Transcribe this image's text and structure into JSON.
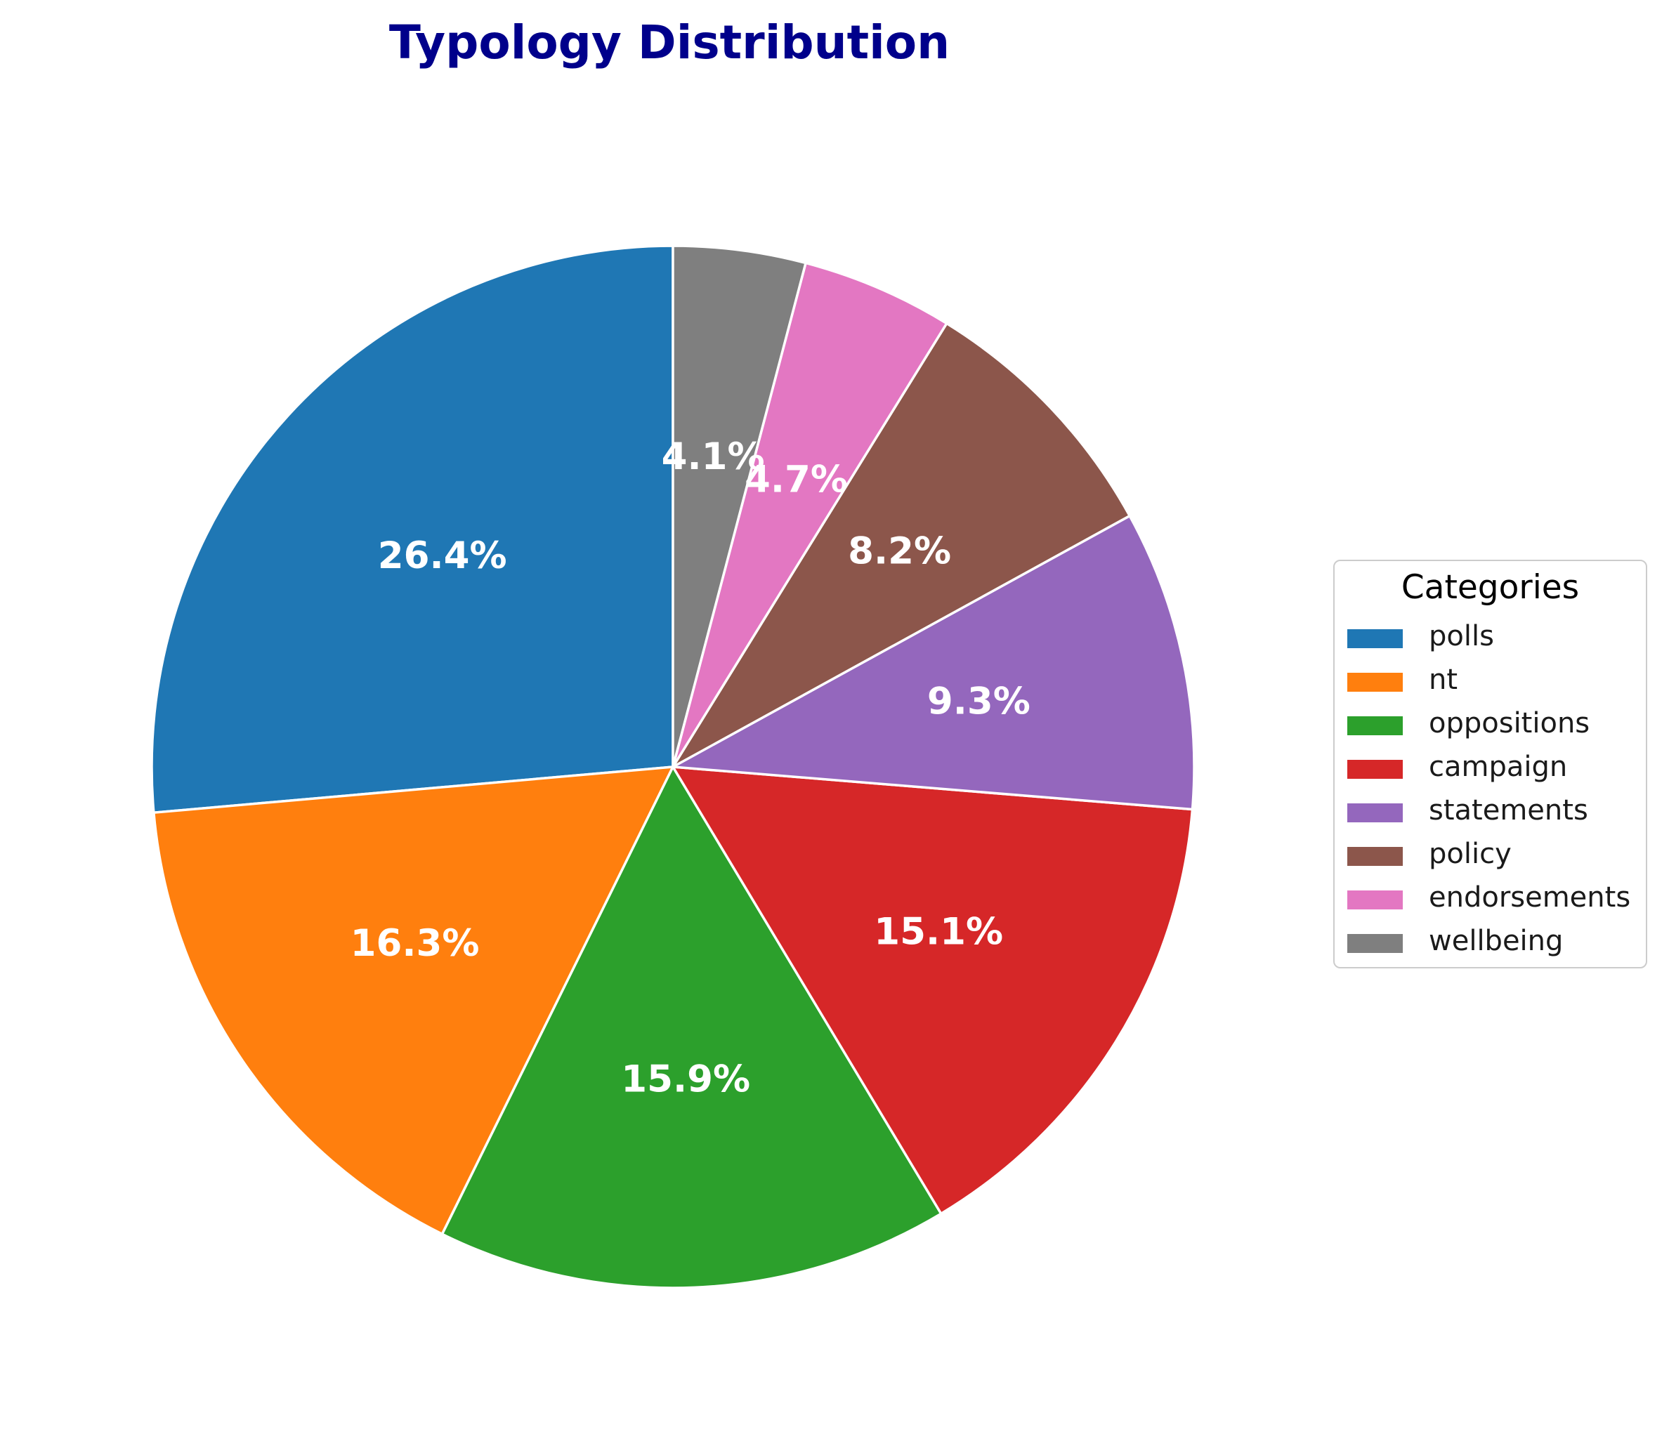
{
  "chart_data": {
    "type": "pie",
    "title": "Typology Distribution",
    "categories": [
      "polls",
      "nt",
      "oppositions",
      "campaign",
      "statements",
      "policy",
      "endorsements",
      "wellbeing"
    ],
    "values": [
      26.4,
      16.3,
      15.9,
      15.1,
      9.3,
      8.2,
      4.7,
      4.1
    ],
    "value_labels": [
      "26.4%",
      "16.3%",
      "15.9%",
      "15.1%",
      "9.3%",
      "8.2%",
      "4.7%",
      "4.1%"
    ],
    "colors": [
      "#1f77b4",
      "#ff7f0e",
      "#2ca02c",
      "#d62728",
      "#9467bd",
      "#8c564b",
      "#e377c2",
      "#7f7f7f"
    ],
    "start_angle_deg": 90,
    "direction": "counterclockwise",
    "legend": {
      "title": "Categories",
      "placement": "right"
    }
  }
}
